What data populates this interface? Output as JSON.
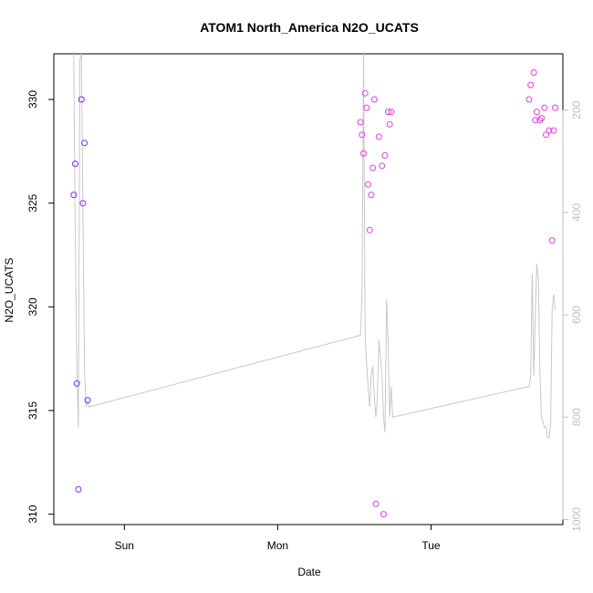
{
  "chart_data": {
    "type": "scatter",
    "title": "ATOM1 North_America N2O_UCATS",
    "xlabel": "Date",
    "ylabel": "N2O_UCATS",
    "x_ticks": [
      "Sun",
      "Mon",
      "Tue"
    ],
    "y_ticks": [
      310,
      315,
      320,
      325,
      330
    ],
    "y_range": [
      309.5,
      332.2
    ],
    "right_axis": {
      "ticks": [
        200,
        400,
        600,
        800,
        1000
      ],
      "range": [
        90,
        1010
      ],
      "reversed": true,
      "color": "#c0c0c0"
    },
    "x_unit": "days",
    "x_range": [
      -0.46,
      2.86
    ],
    "points": [
      {
        "x": -0.33,
        "y": 325.4,
        "color": "#7b2ff7"
      },
      {
        "x": -0.32,
        "y": 326.9,
        "color": "#7b2ff7"
      },
      {
        "x": -0.31,
        "y": 316.3,
        "color": "#7b2ff7"
      },
      {
        "x": -0.3,
        "y": 311.2,
        "color": "#7b2ff7"
      },
      {
        "x": -0.28,
        "y": 330.0,
        "color": "#7b2ff7"
      },
      {
        "x": -0.27,
        "y": 325.0,
        "color": "#7b2ff7"
      },
      {
        "x": -0.26,
        "y": 327.9,
        "color": "#7b2ff7"
      },
      {
        "x": -0.24,
        "y": 315.5,
        "color": "#7b2ff7"
      },
      {
        "x": 1.54,
        "y": 328.9,
        "color": "#e040e0"
      },
      {
        "x": 1.55,
        "y": 328.3,
        "color": "#e040e0"
      },
      {
        "x": 1.56,
        "y": 327.4,
        "color": "#e040e0"
      },
      {
        "x": 1.57,
        "y": 330.3,
        "color": "#e040e0"
      },
      {
        "x": 1.58,
        "y": 329.6,
        "color": "#e040e0"
      },
      {
        "x": 1.59,
        "y": 325.9,
        "color": "#e040e0"
      },
      {
        "x": 1.6,
        "y": 323.7,
        "color": "#e040e0"
      },
      {
        "x": 1.61,
        "y": 325.4,
        "color": "#e040e0"
      },
      {
        "x": 1.62,
        "y": 326.7,
        "color": "#e040e0"
      },
      {
        "x": 1.63,
        "y": 330.0,
        "color": "#e040e0"
      },
      {
        "x": 1.64,
        "y": 310.5,
        "color": "#e040e0"
      },
      {
        "x": 1.66,
        "y": 328.2,
        "color": "#e040e0"
      },
      {
        "x": 1.68,
        "y": 326.8,
        "color": "#e040e0"
      },
      {
        "x": 1.69,
        "y": 310.0,
        "color": "#e040e0"
      },
      {
        "x": 1.7,
        "y": 327.3,
        "color": "#e040e0"
      },
      {
        "x": 1.72,
        "y": 329.4,
        "color": "#e040e0"
      },
      {
        "x": 1.73,
        "y": 328.8,
        "color": "#e040e0"
      },
      {
        "x": 1.74,
        "y": 329.4,
        "color": "#e040e0"
      },
      {
        "x": 2.64,
        "y": 330.0,
        "color": "#e040e0"
      },
      {
        "x": 2.65,
        "y": 330.7,
        "color": "#e040e0"
      },
      {
        "x": 2.67,
        "y": 331.3,
        "color": "#e040e0"
      },
      {
        "x": 2.68,
        "y": 329.0,
        "color": "#e040e0"
      },
      {
        "x": 2.69,
        "y": 329.4,
        "color": "#e040e0"
      },
      {
        "x": 2.71,
        "y": 329.0,
        "color": "#e040e0"
      },
      {
        "x": 2.72,
        "y": 329.1,
        "color": "#e040e0"
      },
      {
        "x": 2.74,
        "y": 329.6,
        "color": "#e040e0"
      },
      {
        "x": 2.75,
        "y": 328.3,
        "color": "#e040e0"
      },
      {
        "x": 2.77,
        "y": 328.5,
        "color": "#e040e0"
      },
      {
        "x": 2.79,
        "y": 323.2,
        "color": "#e040e0"
      },
      {
        "x": 2.8,
        "y": 328.5,
        "color": "#e040e0"
      },
      {
        "x": 2.81,
        "y": 329.6,
        "color": "#e040e0"
      }
    ],
    "pressure_line": {
      "color": "#c8c8c8",
      "axis": "right",
      "x": [
        -0.33,
        -0.32,
        -0.31,
        -0.3,
        -0.29,
        -0.28,
        -0.27,
        -0.26,
        -0.25,
        -0.24,
        -0.23,
        1.54,
        1.55,
        1.56,
        1.57,
        1.58,
        1.59,
        1.6,
        1.61,
        1.62,
        1.63,
        1.64,
        1.65,
        1.66,
        1.67,
        1.68,
        1.69,
        1.7,
        1.71,
        1.72,
        1.73,
        1.74,
        1.75,
        2.64,
        2.65,
        2.66,
        2.67,
        2.68,
        2.69,
        2.7,
        2.71,
        2.72,
        2.73,
        2.74,
        2.75,
        2.76,
        2.77,
        2.78,
        2.79,
        2.8,
        2.81
      ],
      "y": [
        90,
        450,
        700,
        820,
        100,
        90,
        400,
        700,
        780,
        770,
        780,
        640,
        560,
        90,
        640,
        700,
        740,
        780,
        720,
        700,
        760,
        800,
        760,
        650,
        680,
        720,
        800,
        830,
        570,
        650,
        800,
        740,
        800,
        740,
        720,
        520,
        720,
        600,
        500,
        530,
        710,
        800,
        810,
        820,
        820,
        840,
        840,
        810,
        590,
        560,
        590
      ]
    },
    "grid": false,
    "legend": "none"
  }
}
